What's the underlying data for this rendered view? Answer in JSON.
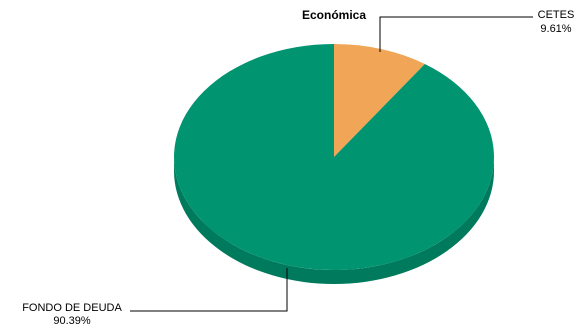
{
  "chart_data": {
    "type": "pie",
    "title": "Económica",
    "style": "3d",
    "slices": [
      {
        "label": "CETES",
        "percent_label": "9.61%",
        "value": 9.61,
        "color": "#F0A656",
        "side_color": "#C8843A"
      },
      {
        "label": "FONDO DE DEUDA",
        "percent_label": "90.39%",
        "value": 90.39,
        "color": "#009470",
        "side_color": "#007A5C"
      }
    ],
    "start_angle": "12 o'clock",
    "direction": "clockwise",
    "legend": "none"
  }
}
